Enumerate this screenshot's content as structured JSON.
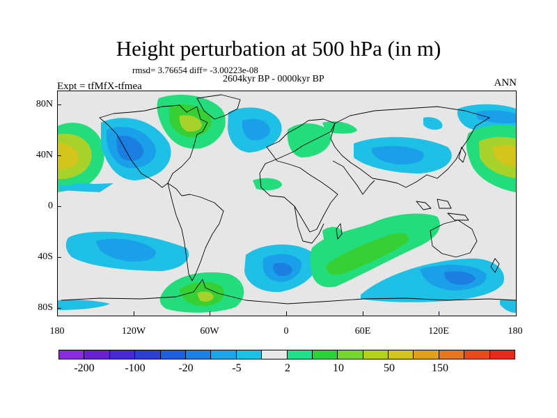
{
  "title": "Height perturbation at 500 hPa (in m)",
  "stats": "rmsd= 3.76654 diff= -3.00223e-08",
  "period": "2604kyr BP - 0000kyr BP",
  "experiment": "Expt = tfMfX-tfmea",
  "season": "ANN",
  "lat_labels": [
    "80N",
    "40N",
    "0",
    "40S",
    "80S"
  ],
  "lon_labels": [
    "180",
    "120W",
    "60W",
    "0",
    "60E",
    "120E",
    "180"
  ],
  "colorbar": {
    "colors": [
      "#8a2be2",
      "#6a1fd0",
      "#4a28d8",
      "#2e3fd6",
      "#1c5fe0",
      "#1a82e6",
      "#1aa6e8",
      "#18c2e6",
      "#e8e8e8",
      "#1fe08a",
      "#2ad23a",
      "#74d62a",
      "#b4d21a",
      "#d6c21c",
      "#e2a01a",
      "#e6761c",
      "#e84a1c",
      "#e8281a"
    ],
    "labels": [
      "-200",
      "-100",
      "-20",
      "-5",
      "2",
      "10",
      "50",
      "150"
    ]
  },
  "legend_colors": {
    "light_blue": "#1fc0e6",
    "mid_blue": "#1aa0e8",
    "blue": "#1a7fe0",
    "dark_blue": "#1c5bd8",
    "green": "#23dc7c",
    "bright_green": "#36cf34",
    "yellow_green": "#a6d22a",
    "yellow": "#d4c41c"
  }
}
